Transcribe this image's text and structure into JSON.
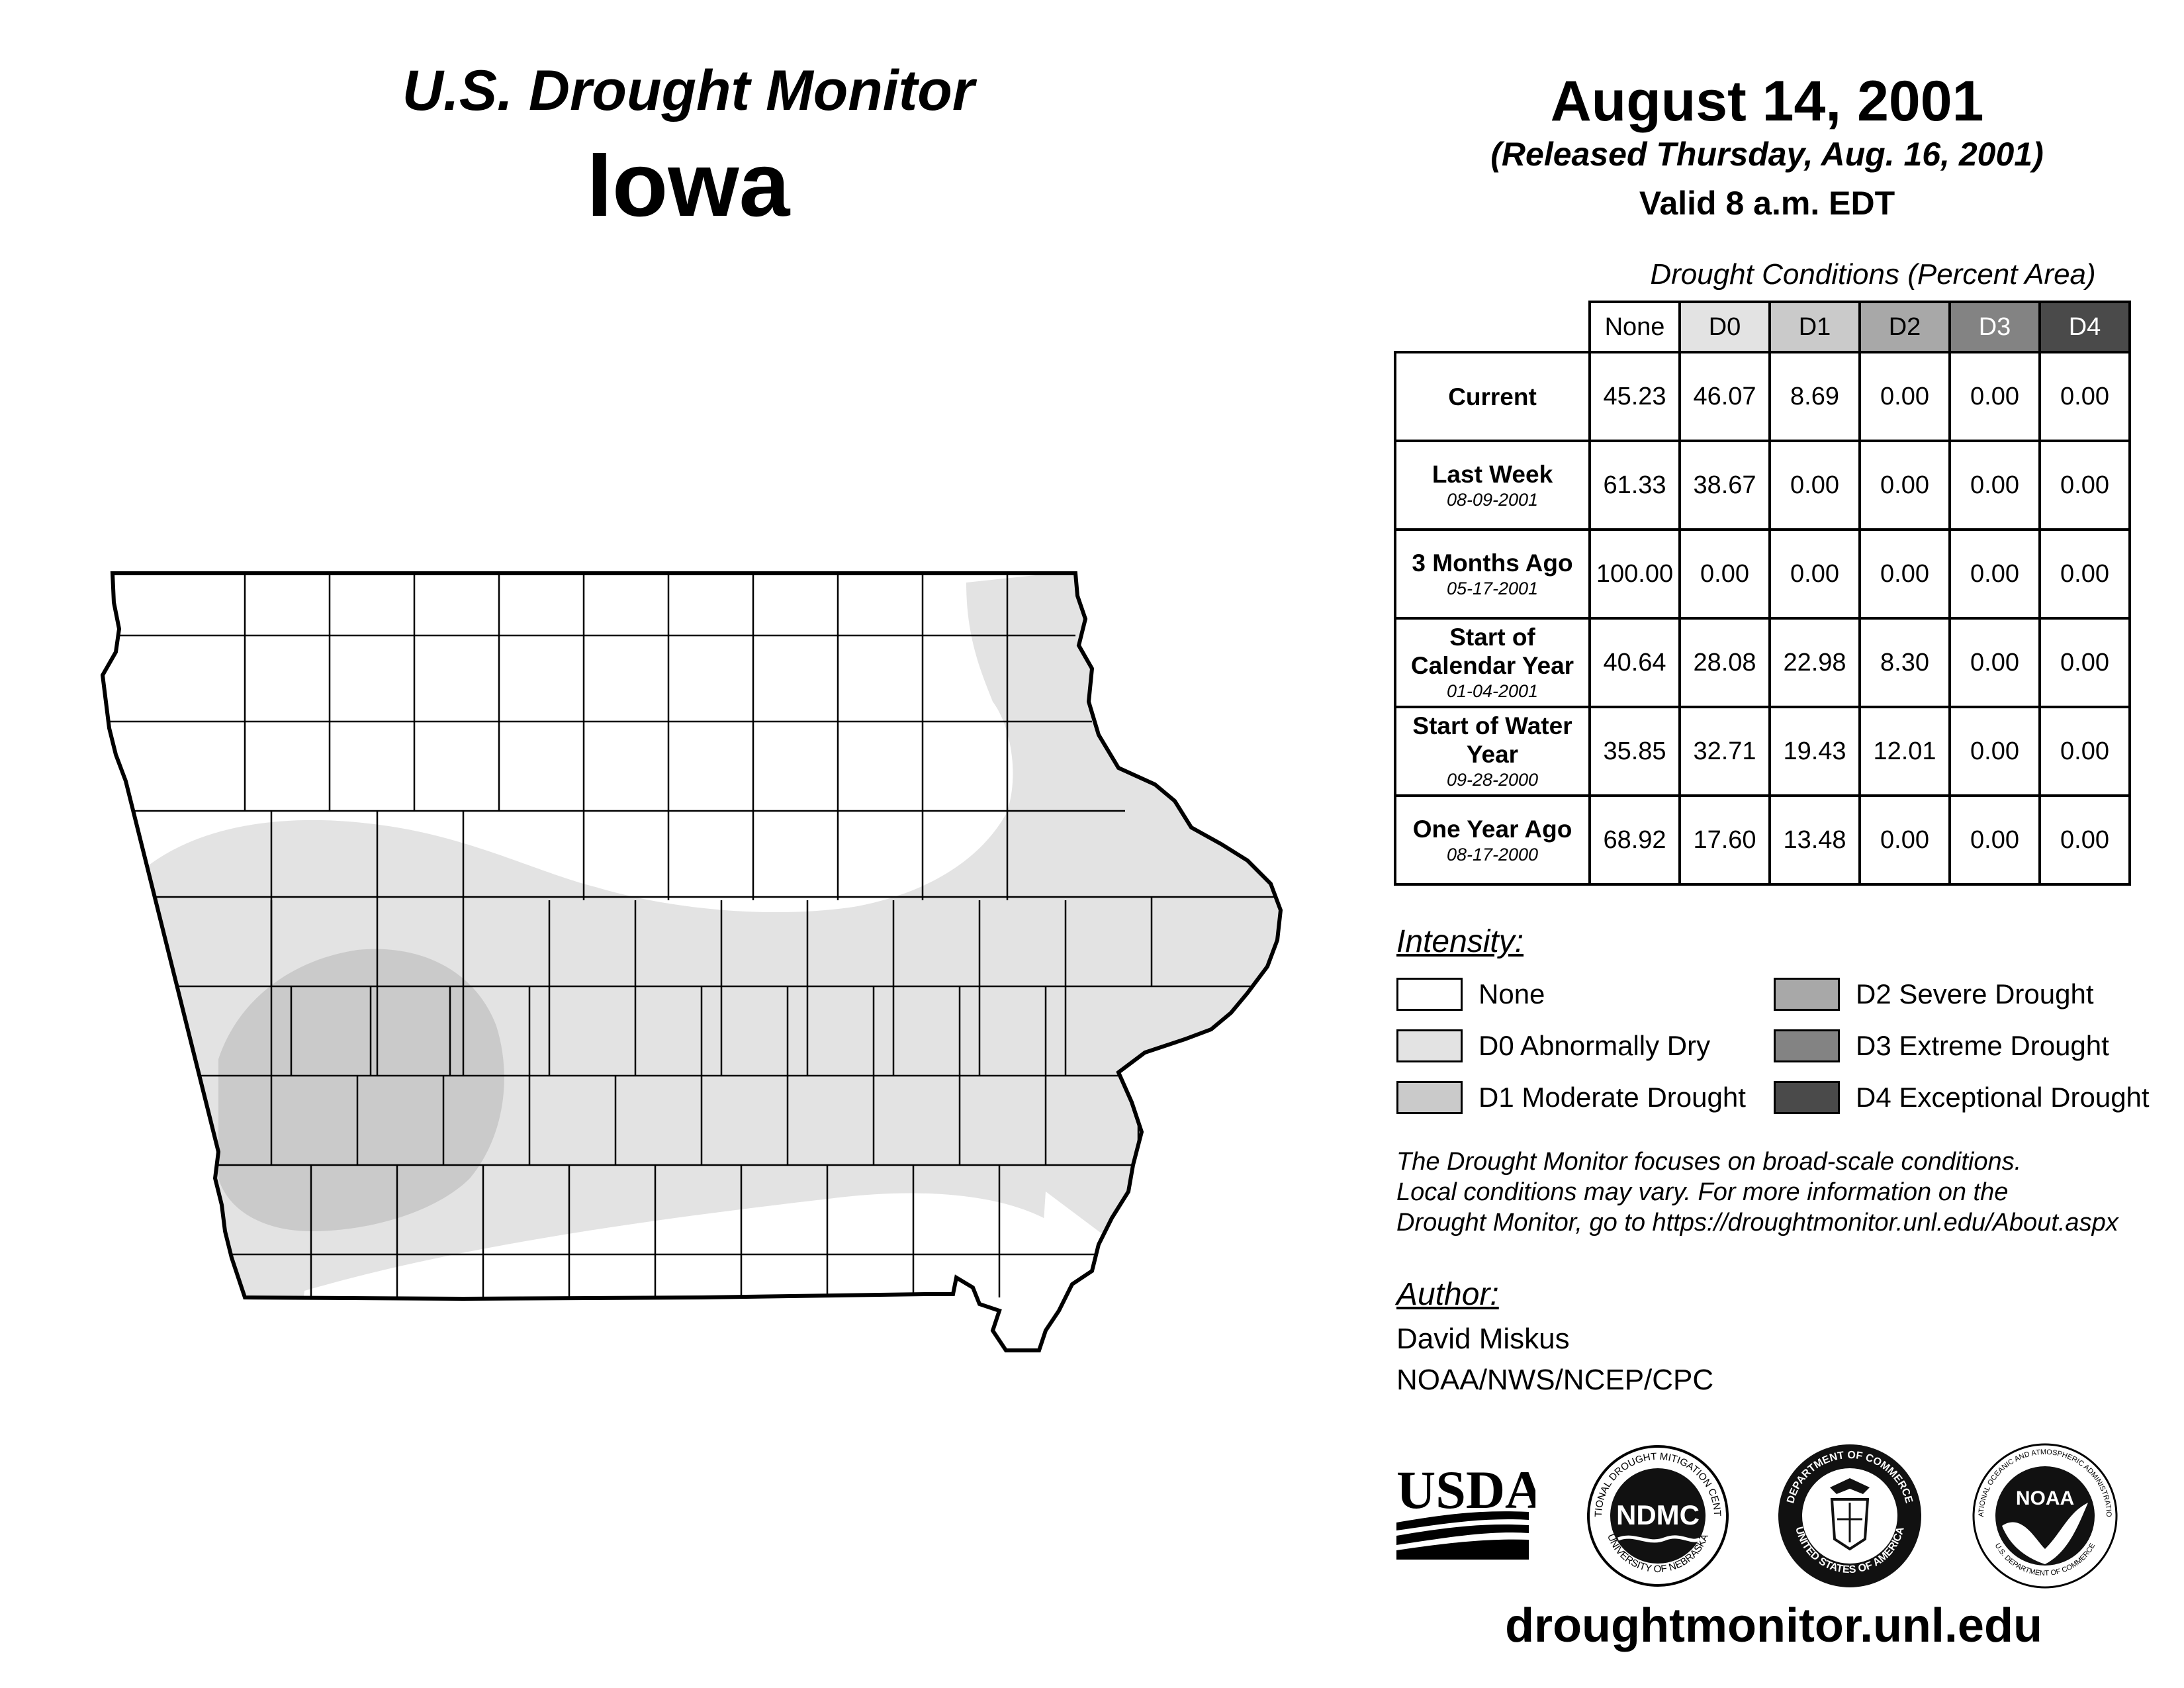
{
  "header": {
    "title": "U.S. Drought Monitor",
    "state": "Iowa",
    "date": "August 14, 2001",
    "released": "(Released Thursday, Aug. 16, 2001)",
    "valid": "Valid 8 a.m. EDT"
  },
  "table": {
    "caption": "Drought Conditions (Percent Area)",
    "columns": [
      "None",
      "D0",
      "D1",
      "D2",
      "D3",
      "D4"
    ],
    "rows": [
      {
        "label": "Current",
        "date": "",
        "values": [
          "45.23",
          "46.07",
          "8.69",
          "0.00",
          "0.00",
          "0.00"
        ]
      },
      {
        "label": "Last Week",
        "date": "08-09-2001",
        "values": [
          "61.33",
          "38.67",
          "0.00",
          "0.00",
          "0.00",
          "0.00"
        ]
      },
      {
        "label": "3 Months Ago",
        "date": "05-17-2001",
        "values": [
          "100.00",
          "0.00",
          "0.00",
          "0.00",
          "0.00",
          "0.00"
        ]
      },
      {
        "label": "Start of Calendar Year",
        "date": "01-04-2001",
        "values": [
          "40.64",
          "28.08",
          "22.98",
          "8.30",
          "0.00",
          "0.00"
        ]
      },
      {
        "label": "Start of Water Year",
        "date": "09-28-2000",
        "values": [
          "35.85",
          "32.71",
          "19.43",
          "12.01",
          "0.00",
          "0.00"
        ]
      },
      {
        "label": "One Year Ago",
        "date": "08-17-2000",
        "values": [
          "68.92",
          "17.60",
          "13.48",
          "0.00",
          "0.00",
          "0.00"
        ]
      }
    ]
  },
  "legend": {
    "title": "Intensity:",
    "items": [
      {
        "label": "None",
        "color": "#ffffff"
      },
      {
        "label": "D0 Abnormally Dry",
        "color": "#e3e3e3"
      },
      {
        "label": "D1 Moderate Drought",
        "color": "#cacaca"
      },
      {
        "label": "D2 Severe Drought",
        "color": "#a8a8a8"
      },
      {
        "label": "D3 Extreme Drought",
        "color": "#838383"
      },
      {
        "label": "D4 Exceptional Drought",
        "color": "#4a4a4a"
      }
    ]
  },
  "note": {
    "line1": "The Drought Monitor focuses on broad-scale conditions.",
    "line2": "Local conditions may vary. For more information on the",
    "line3": "Drought Monitor, go to https://droughtmonitor.unl.edu/About.aspx"
  },
  "author": {
    "heading": "Author:",
    "name": "David Miskus",
    "org": "NOAA/NWS/NCEP/CPC"
  },
  "logos": {
    "usda": "USDA",
    "ndmc": "NDMC",
    "ndmc_top": "NATIONAL DROUGHT MITIGATION CENTER",
    "ndmc_bottom": "UNIVERSITY OF NEBRASKA",
    "doc_top": "DEPARTMENT OF COMMERCE",
    "doc_bottom": "UNITED STATES OF AMERICA",
    "noaa": "NOAA",
    "noaa_ring": "NATIONAL OCEANIC AND ATMOSPHERIC ADMINISTRATION",
    "noaa_bottom": "U.S. DEPARTMENT OF COMMERCE"
  },
  "website": "droughtmonitor.unl.edu",
  "map": {
    "region": "Iowa",
    "drought_areas": [
      {
        "category": "D0",
        "description": "Abnormally Dry — southern, western and eastern Iowa"
      },
      {
        "category": "D1",
        "description": "Moderate Drought — southwest Iowa"
      }
    ]
  }
}
